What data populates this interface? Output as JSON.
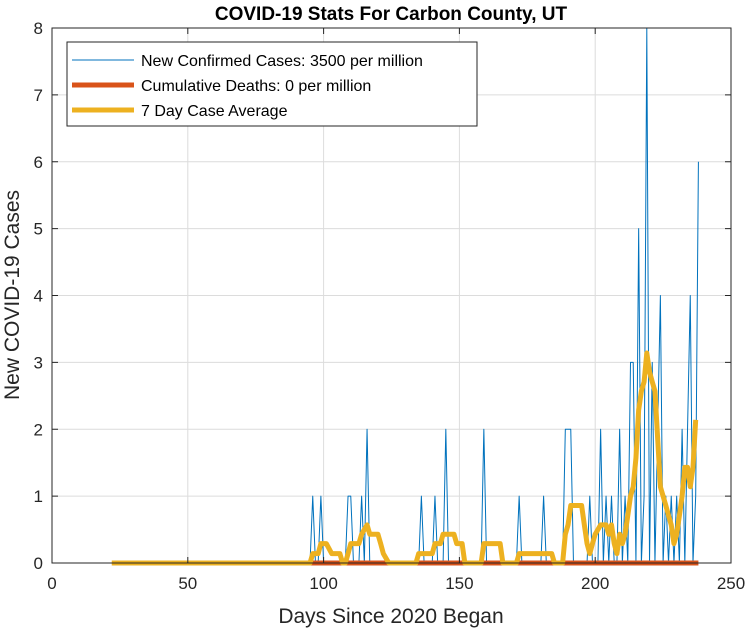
{
  "chart_data": {
    "type": "line",
    "title": "COVID-19 Stats For Carbon County, UT",
    "xlabel": "Days Since 2020 Began",
    "ylabel": "New COVID-19 Cases",
    "xlim": [
      0,
      250
    ],
    "ylim": [
      0,
      8
    ],
    "xticks": [
      0,
      50,
      100,
      150,
      200,
      250
    ],
    "yticks": [
      0,
      1,
      2,
      3,
      4,
      5,
      6,
      7,
      8
    ],
    "grid": true,
    "legend_position": "top-left",
    "series": [
      {
        "name": "New Confirmed Cases: 3500 per million",
        "color": "#0072BD",
        "line_width": "thin",
        "points": [
          [
            22,
            0
          ],
          [
            95,
            0
          ],
          [
            96,
            1
          ],
          [
            97,
            0
          ],
          [
            98,
            0
          ],
          [
            99,
            1
          ],
          [
            100,
            0
          ],
          [
            108,
            0
          ],
          [
            109,
            1
          ],
          [
            110,
            1
          ],
          [
            111,
            0
          ],
          [
            113,
            0
          ],
          [
            114,
            1
          ],
          [
            115,
            0
          ],
          [
            116,
            2
          ],
          [
            117,
            0
          ],
          [
            135,
            0
          ],
          [
            136,
            1
          ],
          [
            137,
            0
          ],
          [
            140,
            0
          ],
          [
            141,
            1
          ],
          [
            142,
            0
          ],
          [
            144,
            0
          ],
          [
            145,
            2
          ],
          [
            146,
            0
          ],
          [
            158,
            0
          ],
          [
            159,
            2
          ],
          [
            160,
            0
          ],
          [
            171,
            0
          ],
          [
            172,
            1
          ],
          [
            173,
            0
          ],
          [
            180,
            0
          ],
          [
            181,
            1
          ],
          [
            182,
            0
          ],
          [
            188,
            0
          ],
          [
            189,
            2
          ],
          [
            190,
            2
          ],
          [
            191,
            2
          ],
          [
            192,
            0
          ],
          [
            197,
            0
          ],
          [
            198,
            1
          ],
          [
            199,
            0
          ],
          [
            201,
            0
          ],
          [
            202,
            2
          ],
          [
            203,
            0
          ],
          [
            204,
            1
          ],
          [
            205,
            0
          ],
          [
            206,
            1
          ],
          [
            207,
            0
          ],
          [
            208,
            0
          ],
          [
            209,
            2
          ],
          [
            210,
            0
          ],
          [
            211,
            1
          ],
          [
            212,
            0
          ],
          [
            213,
            3
          ],
          [
            214,
            3
          ],
          [
            215,
            0
          ],
          [
            216,
            5
          ],
          [
            217,
            0
          ],
          [
            218,
            1
          ],
          [
            219,
            8
          ],
          [
            220,
            0
          ],
          [
            221,
            3
          ],
          [
            222,
            0
          ],
          [
            223,
            2
          ],
          [
            224,
            4
          ],
          [
            225,
            0
          ],
          [
            226,
            1
          ],
          [
            227,
            0
          ],
          [
            228,
            1
          ],
          [
            229,
            0
          ],
          [
            230,
            1
          ],
          [
            231,
            0
          ],
          [
            232,
            2
          ],
          [
            233,
            0
          ],
          [
            234,
            2
          ],
          [
            235,
            4
          ],
          [
            236,
            0
          ],
          [
            237,
            1
          ],
          [
            238,
            6
          ]
        ]
      },
      {
        "name": "Cumulative Deaths: 0 per million",
        "color": "#D95319",
        "line_width": "thick",
        "points": [
          [
            95,
            0
          ],
          [
            238,
            0
          ]
        ]
      },
      {
        "name": "7 Day Case Average",
        "color": "#EDB120",
        "line_width": "thick",
        "points": [
          [
            22,
            0
          ],
          [
            95,
            0
          ],
          [
            96,
            0.14
          ],
          [
            98,
            0.14
          ],
          [
            99,
            0.29
          ],
          [
            101,
            0.29
          ],
          [
            103,
            0.14
          ],
          [
            106,
            0.14
          ],
          [
            107,
            0
          ],
          [
            108,
            0
          ],
          [
            109,
            0.14
          ],
          [
            110,
            0.29
          ],
          [
            113,
            0.29
          ],
          [
            114,
            0.43
          ],
          [
            116,
            0.57
          ],
          [
            117,
            0.43
          ],
          [
            120,
            0.43
          ],
          [
            121,
            0.29
          ],
          [
            122,
            0.14
          ],
          [
            124,
            0
          ],
          [
            134,
            0
          ],
          [
            135,
            0.14
          ],
          [
            136,
            0.14
          ],
          [
            140,
            0.14
          ],
          [
            141,
            0.29
          ],
          [
            143,
            0.29
          ],
          [
            144,
            0.43
          ],
          [
            148,
            0.43
          ],
          [
            149,
            0.29
          ],
          [
            151,
            0.29
          ],
          [
            152,
            0
          ],
          [
            158,
            0
          ],
          [
            159,
            0.29
          ],
          [
            165,
            0.29
          ],
          [
            166,
            0
          ],
          [
            171,
            0
          ],
          [
            172,
            0.14
          ],
          [
            180,
            0.14
          ],
          [
            181,
            0.14
          ],
          [
            184,
            0.14
          ],
          [
            185,
            0
          ],
          [
            188,
            0
          ],
          [
            189,
            0.43
          ],
          [
            190,
            0.57
          ],
          [
            191,
            0.86
          ],
          [
            195,
            0.86
          ],
          [
            196,
            0.57
          ],
          [
            197,
            0.29
          ],
          [
            198,
            0.14
          ],
          [
            199,
            0.29
          ],
          [
            200,
            0.43
          ],
          [
            202,
            0.57
          ],
          [
            204,
            0.57
          ],
          [
            205,
            0.43
          ],
          [
            206,
            0.57
          ],
          [
            207,
            0.29
          ],
          [
            208,
            0.14
          ],
          [
            209,
            0.43
          ],
          [
            210,
            0.29
          ],
          [
            211,
            0.43
          ],
          [
            212,
            0.71
          ],
          [
            213,
            1.0
          ],
          [
            214,
            1.14
          ],
          [
            215,
            1.57
          ],
          [
            216,
            2.29
          ],
          [
            217,
            2.57
          ],
          [
            218,
            2.71
          ],
          [
            219,
            3.14
          ],
          [
            220,
            2.86
          ],
          [
            221,
            2.71
          ],
          [
            222,
            2.57
          ],
          [
            223,
            1.86
          ],
          [
            224,
            1.14
          ],
          [
            225,
            1.0
          ],
          [
            226,
            0.86
          ],
          [
            227,
            0.71
          ],
          [
            228,
            0.57
          ],
          [
            229,
            0.29
          ],
          [
            230,
            0.43
          ],
          [
            231,
            0.71
          ],
          [
            232,
            1.0
          ],
          [
            233,
            1.43
          ],
          [
            234,
            1.43
          ],
          [
            235,
            1.14
          ],
          [
            236,
            1.43
          ],
          [
            237,
            2.14
          ]
        ]
      }
    ]
  }
}
